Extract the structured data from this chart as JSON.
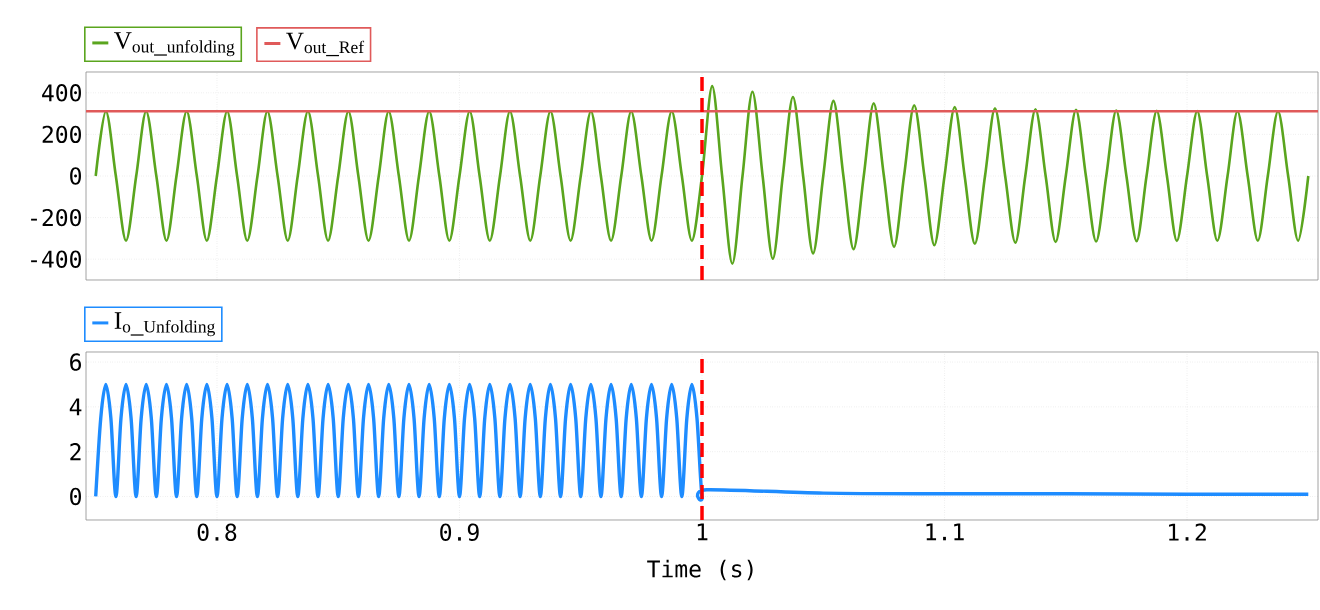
{
  "chart_data": [
    {
      "type": "line",
      "xlim": [
        0.746,
        1.254
      ],
      "ylim": [
        -500,
        500
      ],
      "xticks": [
        0.8,
        0.9,
        1,
        1.1,
        1.2
      ],
      "yticks": [
        -400,
        -200,
        0,
        200,
        400
      ],
      "grid": true,
      "legend": "top left",
      "tick_labels": "y",
      "ref_lines": [
        {
          "axis": "x",
          "value": 1,
          "color": "#ff0000",
          "line_style": "dashed"
        }
      ],
      "series": [
        {
          "name": "\\mathrm{V}_{\\mathrm{out\\_unfolding}}",
          "color": "#5aa51e",
          "x": [
            0.75,
            0.7542,
            0.7583,
            0.7625,
            0.7667,
            0.7708,
            0.775,
            0.7792,
            0.7833,
            0.7875,
            0.7917,
            0.7958,
            0.8,
            0.8042,
            0.8083,
            0.8125,
            0.8167,
            0.8208,
            0.825,
            0.8292,
            0.8333,
            0.8375,
            0.8417,
            0.8458,
            0.85,
            0.8542,
            0.8583,
            0.8625,
            0.8667,
            0.8708,
            0.875,
            0.8792,
            0.8833,
            0.8875,
            0.8917,
            0.8958,
            0.9,
            0.9042,
            0.9083,
            0.9125,
            0.9167,
            0.9208,
            0.925,
            0.9292,
            0.9333,
            0.9375,
            0.9417,
            0.9458,
            0.95,
            0.9542,
            0.9583,
            0.9625,
            0.9667,
            0.9708,
            0.975,
            0.9792,
            0.9833,
            0.9875,
            0.9917,
            0.9958,
            1,
            1.0042,
            1.0083,
            1.0125,
            1.0167,
            1.0208,
            1.025,
            1.0292,
            1.0333,
            1.0375,
            1.0417,
            1.0458,
            1.05,
            1.0542,
            1.0583,
            1.0625,
            1.0667,
            1.0708,
            1.075,
            1.0792,
            1.0833,
            1.0875,
            1.0917,
            1.0958,
            1.1,
            1.1042,
            1.1083,
            1.1125,
            1.1167,
            1.1208,
            1.125,
            1.1292,
            1.1333,
            1.1375,
            1.1417,
            1.1458,
            1.15,
            1.1542,
            1.1583,
            1.1625,
            1.1667,
            1.1708,
            1.175,
            1.1792,
            1.1833,
            1.1875,
            1.1917,
            1.1958,
            1.2,
            1.2042,
            1.2083,
            1.2125,
            1.2167,
            1.2208,
            1.225,
            1.2292,
            1.2333,
            1.2375,
            1.2417,
            1.2458,
            1.25
          ],
          "values": [
            0,
            311,
            0,
            -311,
            0,
            311,
            0,
            -311,
            0,
            311,
            0,
            -311,
            0,
            311,
            0,
            -311,
            0,
            311,
            0,
            -311,
            0,
            311,
            0,
            -311,
            0,
            311,
            0,
            -311,
            0,
            311,
            0,
            -311,
            0,
            311,
            0,
            -311,
            0,
            311,
            0,
            -311,
            0,
            311,
            0,
            -311,
            0,
            311,
            0,
            -311,
            0,
            311,
            0,
            -311,
            0,
            311,
            0,
            -311,
            0,
            311,
            0,
            -311,
            0,
            432,
            0,
            -422,
            0,
            405,
            0,
            -398,
            0,
            380,
            0,
            -372,
            0,
            361,
            0,
            -352,
            0,
            350,
            0,
            -341,
            0,
            340,
            0,
            -333,
            0,
            332,
            0,
            -326,
            0,
            326,
            0,
            -321,
            0,
            321,
            0,
            -317,
            0,
            318,
            0,
            -315,
            0,
            315,
            0,
            -313,
            0,
            313,
            0,
            -312,
            0,
            312,
            0,
            -311,
            0,
            311,
            0,
            -311,
            0,
            311,
            0,
            -311,
            0
          ]
        },
        {
          "name": "\\mathrm{V}_{\\mathrm{out\\_Ref}}",
          "color": "#e05a5a",
          "x": [
            0.746,
            1.254
          ],
          "values": [
            311,
            311
          ]
        }
      ]
    },
    {
      "type": "line",
      "xlim": [
        0.746,
        1.254
      ],
      "ylim": [
        -1.05,
        6.45
      ],
      "xticks": [
        0.8,
        0.9,
        1,
        1.1,
        1.2
      ],
      "yticks": [
        0,
        2,
        4,
        6
      ],
      "grid": true,
      "legend": "top left",
      "xlabel": "Time (s)",
      "ref_lines": [
        {
          "axis": "x",
          "value": 1,
          "color": "#ff0000",
          "line_style": "dashed"
        }
      ],
      "series": [
        {
          "name": "\\mathrm{I}_{\\mathrm{o\\_Unfolding}}",
          "color": "#1e8cff",
          "x": [
            0.75,
            0.75208,
            0.75417,
            0.75625,
            0.75833,
            0.76042,
            0.7625,
            0.76458,
            0.76667,
            0.76875,
            0.77083,
            0.77292,
            0.775,
            0.77708,
            0.77917,
            0.78125,
            0.78333,
            0.78542,
            0.7875,
            0.78958,
            0.79167,
            0.79375,
            0.79583,
            0.79792,
            0.8,
            0.80208,
            0.80417,
            0.80625,
            0.80833,
            0.81042,
            0.8125,
            0.81458,
            0.81667,
            0.81875,
            0.82083,
            0.82292,
            0.825,
            0.82708,
            0.82917,
            0.83125,
            0.83333,
            0.83542,
            0.8375,
            0.83958,
            0.84167,
            0.84375,
            0.84583,
            0.84792,
            0.85,
            0.85208,
            0.85417,
            0.85625,
            0.85833,
            0.86042,
            0.8625,
            0.86458,
            0.86667,
            0.86875,
            0.87083,
            0.87292,
            0.875,
            0.87708,
            0.87917,
            0.88125,
            0.88333,
            0.88542,
            0.8875,
            0.88958,
            0.89167,
            0.89375,
            0.89583,
            0.89792,
            0.9,
            0.90208,
            0.90417,
            0.90625,
            0.90833,
            0.91042,
            0.9125,
            0.91458,
            0.91667,
            0.91875,
            0.92083,
            0.92292,
            0.925,
            0.92708,
            0.92917,
            0.93125,
            0.93333,
            0.93542,
            0.9375,
            0.93958,
            0.94167,
            0.94375,
            0.94583,
            0.94792,
            0.95,
            0.95208,
            0.95417,
            0.95625,
            0.95833,
            0.96042,
            0.9625,
            0.96458,
            0.96667,
            0.96875,
            0.97083,
            0.97292,
            0.975,
            0.97708,
            0.97917,
            0.98125,
            0.98333,
            0.98542,
            0.9875,
            0.98958,
            0.99167,
            0.99375,
            0.99583,
            0.99792,
            1,
            1.002,
            1.05,
            1.1,
            1.15,
            1.2,
            1.25
          ],
          "values": [
            0,
            3.5,
            5,
            3.5,
            0,
            3.5,
            5,
            3.5,
            0,
            3.5,
            5,
            3.5,
            0,
            3.5,
            5,
            3.5,
            0,
            3.5,
            5,
            3.5,
            0,
            3.5,
            5,
            3.5,
            0,
            3.5,
            5,
            3.5,
            0,
            3.5,
            5,
            3.5,
            0,
            3.5,
            5,
            3.5,
            0,
            3.5,
            5,
            3.5,
            0,
            3.5,
            5,
            3.5,
            0,
            3.5,
            5,
            3.5,
            0,
            3.5,
            5,
            3.5,
            0,
            3.5,
            5,
            3.5,
            0,
            3.5,
            5,
            3.5,
            0,
            3.5,
            5,
            3.5,
            0,
            3.5,
            5,
            3.5,
            0,
            3.5,
            5,
            3.5,
            0,
            3.5,
            5,
            3.5,
            0,
            3.5,
            5,
            3.5,
            0,
            3.5,
            5,
            3.5,
            0,
            3.5,
            5,
            3.5,
            0,
            3.5,
            5,
            3.5,
            0,
            3.5,
            5,
            3.5,
            0,
            3.5,
            5,
            3.5,
            0,
            3.5,
            5,
            3.5,
            0,
            3.5,
            5,
            3.5,
            0,
            3.5,
            5,
            3.5,
            0,
            3.5,
            5,
            3.5,
            0,
            3.5,
            5,
            3.5,
            0,
            0.3,
            0.15,
            0.12,
            0.12,
            0.1,
            0.1
          ]
        }
      ]
    }
  ]
}
